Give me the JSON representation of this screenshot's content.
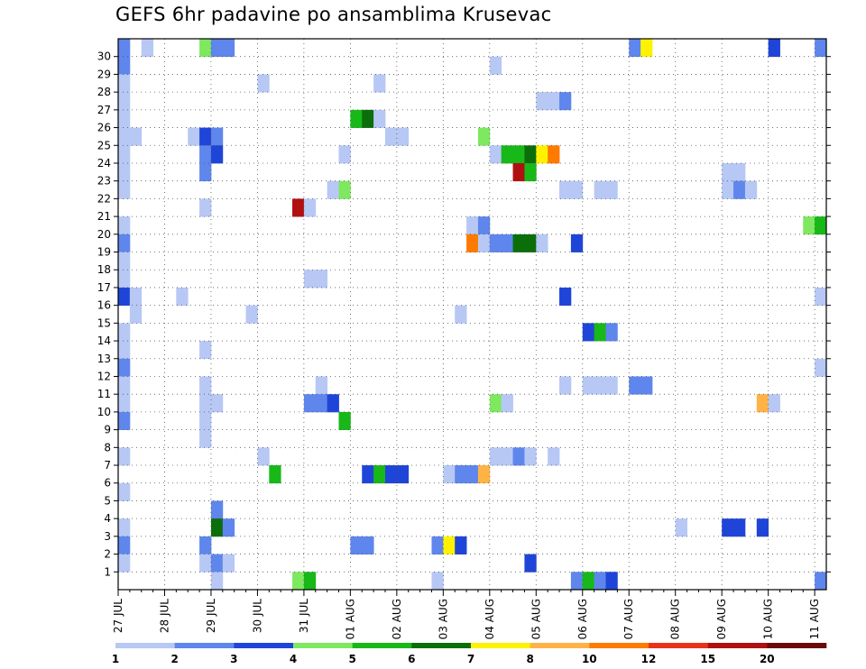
{
  "chart_data": {
    "type": "heatmap",
    "title": "GEFS 6hr padavine po ansamblima Krusevac",
    "xlabel": "",
    "ylabel": "",
    "x_tick_labels": [
      "27 JUL",
      "28 JUL",
      "29 JUL",
      "30 JUL",
      "31 JUL",
      "01 AUG",
      "02 AUG",
      "03 AUG",
      "04 AUG",
      "05 AUG",
      "06 AUG",
      "07 AUG",
      "08 AUG",
      "09 AUG",
      "10 AUG",
      "11 AUG"
    ],
    "y_tick_labels": [
      "1",
      "2",
      "3",
      "4",
      "5",
      "6",
      "7",
      "8",
      "9",
      "10",
      "11",
      "12",
      "13",
      "14",
      "15",
      "16",
      "17",
      "18",
      "19",
      "20",
      "21",
      "22",
      "23",
      "24",
      "25",
      "26",
      "27",
      "28",
      "29",
      "30"
    ],
    "x_step_hours": 6,
    "y_range": [
      0,
      30
    ],
    "grid": true,
    "colorbar": {
      "boundaries": [
        "1",
        "2",
        "3",
        "4",
        "5",
        "6",
        "7",
        "8",
        "10",
        "12",
        "15",
        "20"
      ],
      "colors": [
        "#b7c8f5",
        "#5f86ec",
        "#1f45d8",
        "#7ee860",
        "#18b818",
        "#0b6e0b",
        "#fff200",
        "#ffb347",
        "#ff7a00",
        "#e8331a",
        "#b01010",
        "#6b0a0a"
      ]
    },
    "cells": [
      [
        0,
        30,
        2
      ],
      [
        2,
        30,
        1
      ],
      [
        7,
        30,
        4
      ],
      [
        8,
        30,
        2
      ],
      [
        9,
        30,
        2
      ],
      [
        44,
        30,
        2
      ],
      [
        45,
        30,
        7
      ],
      [
        56,
        30,
        3
      ],
      [
        60,
        30,
        2
      ],
      [
        0,
        29,
        2
      ],
      [
        32,
        29,
        1
      ],
      [
        0,
        28,
        1
      ],
      [
        12,
        28,
        1
      ],
      [
        22,
        28,
        1
      ],
      [
        0,
        27,
        1
      ],
      [
        36,
        27,
        1
      ],
      [
        37,
        27,
        1
      ],
      [
        38,
        27,
        2
      ],
      [
        0,
        26,
        1
      ],
      [
        20,
        26,
        5
      ],
      [
        21,
        26,
        6
      ],
      [
        22,
        26,
        1
      ],
      [
        0,
        25,
        1
      ],
      [
        1,
        25,
        1
      ],
      [
        6,
        25,
        1
      ],
      [
        7,
        25,
        3
      ],
      [
        8,
        25,
        2
      ],
      [
        23,
        25,
        1
      ],
      [
        24,
        25,
        1
      ],
      [
        31,
        25,
        4
      ],
      [
        0,
        24,
        1
      ],
      [
        7,
        24,
        2
      ],
      [
        8,
        24,
        3
      ],
      [
        19,
        24,
        1
      ],
      [
        32,
        24,
        1
      ],
      [
        33,
        24,
        5
      ],
      [
        34,
        24,
        5
      ],
      [
        35,
        24,
        6
      ],
      [
        36,
        24,
        7
      ],
      [
        37,
        24,
        9
      ],
      [
        0,
        23,
        1
      ],
      [
        7,
        23,
        2
      ],
      [
        34,
        23,
        11
      ],
      [
        35,
        23,
        5
      ],
      [
        52,
        23,
        1
      ],
      [
        53,
        23,
        1
      ],
      [
        0,
        22,
        1
      ],
      [
        18,
        22,
        1
      ],
      [
        19,
        22,
        4
      ],
      [
        38,
        22,
        1
      ],
      [
        39,
        22,
        1
      ],
      [
        41,
        22,
        1
      ],
      [
        42,
        22,
        1
      ],
      [
        52,
        22,
        1
      ],
      [
        53,
        22,
        2
      ],
      [
        54,
        22,
        1
      ],
      [
        7,
        21,
        1
      ],
      [
        15,
        21,
        11
      ],
      [
        16,
        21,
        1
      ],
      [
        0,
        20,
        1
      ],
      [
        30,
        20,
        1
      ],
      [
        31,
        20,
        2
      ],
      [
        59,
        20,
        4
      ],
      [
        60,
        20,
        5
      ],
      [
        0,
        19,
        2
      ],
      [
        30,
        19,
        9
      ],
      [
        31,
        19,
        1
      ],
      [
        32,
        19,
        2
      ],
      [
        33,
        19,
        2
      ],
      [
        34,
        19,
        6
      ],
      [
        35,
        19,
        6
      ],
      [
        36,
        19,
        1
      ],
      [
        39,
        19,
        3
      ],
      [
        0,
        18,
        1
      ],
      [
        0,
        17,
        1
      ],
      [
        16,
        17,
        1
      ],
      [
        17,
        17,
        1
      ],
      [
        0,
        16,
        3
      ],
      [
        1,
        16,
        1
      ],
      [
        5,
        16,
        1
      ],
      [
        38,
        16,
        3
      ],
      [
        60,
        16,
        1
      ],
      [
        1,
        15,
        1
      ],
      [
        11,
        15,
        1
      ],
      [
        29,
        15,
        1
      ],
      [
        0,
        14,
        1
      ],
      [
        40,
        14,
        3
      ],
      [
        41,
        14,
        5
      ],
      [
        42,
        14,
        2
      ],
      [
        0,
        13,
        1
      ],
      [
        7,
        13,
        1
      ],
      [
        0,
        12,
        2
      ],
      [
        60,
        12,
        1
      ],
      [
        0,
        11,
        1
      ],
      [
        7,
        11,
        1
      ],
      [
        17,
        11,
        1
      ],
      [
        38,
        11,
        1
      ],
      [
        40,
        11,
        1
      ],
      [
        41,
        11,
        1
      ],
      [
        42,
        11,
        1
      ],
      [
        44,
        11,
        2
      ],
      [
        45,
        11,
        2
      ],
      [
        0,
        10,
        1
      ],
      [
        7,
        10,
        1
      ],
      [
        8,
        10,
        1
      ],
      [
        16,
        10,
        2
      ],
      [
        17,
        10,
        2
      ],
      [
        18,
        10,
        3
      ],
      [
        32,
        10,
        4
      ],
      [
        33,
        10,
        1
      ],
      [
        55,
        10,
        8
      ],
      [
        56,
        10,
        1
      ],
      [
        0,
        9,
        2
      ],
      [
        7,
        9,
        1
      ],
      [
        19,
        9,
        5
      ],
      [
        7,
        8,
        1
      ],
      [
        0,
        7,
        1
      ],
      [
        12,
        7,
        1
      ],
      [
        32,
        7,
        1
      ],
      [
        33,
        7,
        1
      ],
      [
        34,
        7,
        2
      ],
      [
        35,
        7,
        1
      ],
      [
        37,
        7,
        1
      ],
      [
        13,
        6,
        5
      ],
      [
        21,
        6,
        3
      ],
      [
        22,
        6,
        5
      ],
      [
        23,
        6,
        3
      ],
      [
        24,
        6,
        3
      ],
      [
        28,
        6,
        1
      ],
      [
        29,
        6,
        2
      ],
      [
        30,
        6,
        2
      ],
      [
        31,
        6,
        8
      ],
      [
        0,
        5,
        1
      ],
      [
        8,
        4,
        2
      ],
      [
        0,
        3,
        1
      ],
      [
        8,
        3,
        6
      ],
      [
        9,
        3,
        2
      ],
      [
        48,
        3,
        1
      ],
      [
        52,
        3,
        3
      ],
      [
        53,
        3,
        3
      ],
      [
        55,
        3,
        3
      ],
      [
        0,
        2,
        2
      ],
      [
        7,
        2,
        2
      ],
      [
        20,
        2,
        2
      ],
      [
        21,
        2,
        2
      ],
      [
        27,
        2,
        2
      ],
      [
        28,
        2,
        7
      ],
      [
        29,
        2,
        3
      ],
      [
        0,
        1,
        1
      ],
      [
        7,
        1,
        1
      ],
      [
        8,
        1,
        2
      ],
      [
        9,
        1,
        1
      ],
      [
        35,
        1,
        3
      ],
      [
        8,
        0,
        1
      ],
      [
        15,
        0,
        4
      ],
      [
        16,
        0,
        5
      ],
      [
        27,
        0,
        1
      ],
      [
        39,
        0,
        2
      ],
      [
        40,
        0,
        5
      ],
      [
        41,
        0,
        2
      ],
      [
        42,
        0,
        3
      ],
      [
        60,
        0,
        2
      ]
    ]
  }
}
